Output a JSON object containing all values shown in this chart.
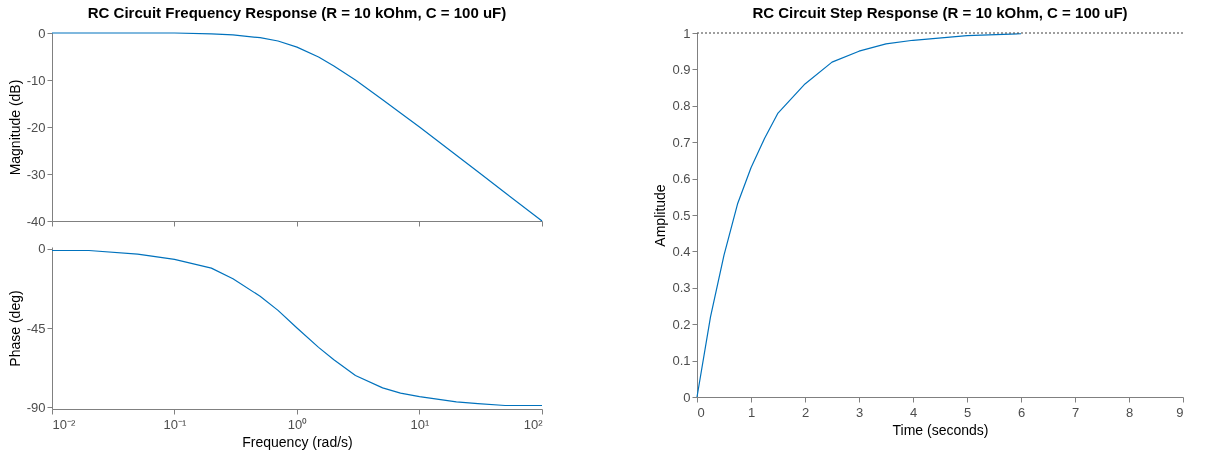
{
  "chart_data": [
    {
      "type": "line",
      "title": "RC Circuit Frequency Response (R = 10 kOhm, C = 100 uF)",
      "ylabel": "Magnitude (dB)",
      "log": "x",
      "tick_labels": "y",
      "grid": false,
      "line_style": "solid",
      "x": [
        0.01,
        0.02,
        0.05,
        0.1,
        0.2,
        0.3,
        0.5,
        0.7,
        1,
        1.5,
        2,
        3,
        5,
        7,
        10,
        20,
        30,
        50,
        100
      ],
      "series": [
        {
          "color": "#0072bd",
          "values": [
            0,
            0,
            0,
            0,
            -0.2,
            -0.4,
            -1,
            -1.7,
            -3,
            -5.1,
            -7,
            -10,
            -14.2,
            -17,
            -20,
            -26,
            -29.5,
            -34,
            -40
          ]
        }
      ],
      "xlim": [
        0.01,
        100
      ],
      "xticks": [
        {
          "value": 0.01,
          "label": null
        },
        {
          "value": 0.1,
          "label": null
        },
        {
          "value": 1,
          "label": null
        },
        {
          "value": 10,
          "label": null
        },
        {
          "value": 100,
          "label": null
        }
      ],
      "ylim": [
        -40,
        0
      ],
      "yticks": [
        -40,
        -30,
        -20,
        -10,
        0
      ]
    },
    {
      "type": "line",
      "xlabel": "Frequency  (rad/s)",
      "ylabel": "Phase (deg)",
      "log": "x",
      "grid": false,
      "line_style": "solid",
      "x": [
        0.01,
        0.02,
        0.05,
        0.1,
        0.2,
        0.3,
        0.5,
        0.7,
        1,
        1.5,
        2,
        3,
        5,
        7,
        10,
        20,
        30,
        50,
        100
      ],
      "series": [
        {
          "color": "#0072bd",
          "values": [
            -1,
            -1,
            -3,
            -6,
            -11,
            -17,
            -27,
            -35,
            -45,
            -56,
            -63,
            -72,
            -79,
            -82,
            -84,
            -87,
            -88,
            -89,
            -89
          ]
        }
      ],
      "xlim": [
        0.01,
        100
      ],
      "xticks": [
        {
          "value": 0.01,
          "label": "10⁻²"
        },
        {
          "value": 0.1,
          "label": "10⁻¹"
        },
        {
          "value": 1,
          "label": "10⁰"
        },
        {
          "value": 10,
          "label": "10¹"
        },
        {
          "value": 100,
          "label": "10²"
        }
      ],
      "ylim": [
        -91,
        1
      ],
      "yticks": [
        -90,
        -45,
        0
      ]
    },
    {
      "type": "line",
      "title": "RC Circuit Step Response (R = 10 kOhm, C = 100 uF)",
      "xlabel": "Time (seconds)",
      "ylabel": "Amplitude",
      "grid": false,
      "line_style": "solid",
      "x": [
        0,
        0.25,
        0.5,
        0.75,
        1,
        1.25,
        1.5,
        2,
        2.5,
        3,
        3.5,
        4,
        5,
        6
      ],
      "series": [
        {
          "color": "#0072bd",
          "values": [
            0,
            0.22,
            0.39,
            0.53,
            0.63,
            0.71,
            0.78,
            0.86,
            0.92,
            0.95,
            0.97,
            0.98,
            0.993,
            0.998
          ]
        }
      ],
      "ref_lines": [
        {
          "axis": "y",
          "value": 1,
          "color": "#404040",
          "line_style": "dotted"
        }
      ],
      "xlim": [
        0,
        9
      ],
      "xticks": [
        0,
        1,
        2,
        3,
        4,
        5,
        6,
        7,
        8,
        9
      ],
      "ylim": [
        0,
        1
      ],
      "yticks": [
        0,
        0.1,
        0.2,
        0.3,
        0.4,
        0.5,
        0.6,
        0.7,
        0.8,
        0.9,
        1
      ]
    }
  ]
}
